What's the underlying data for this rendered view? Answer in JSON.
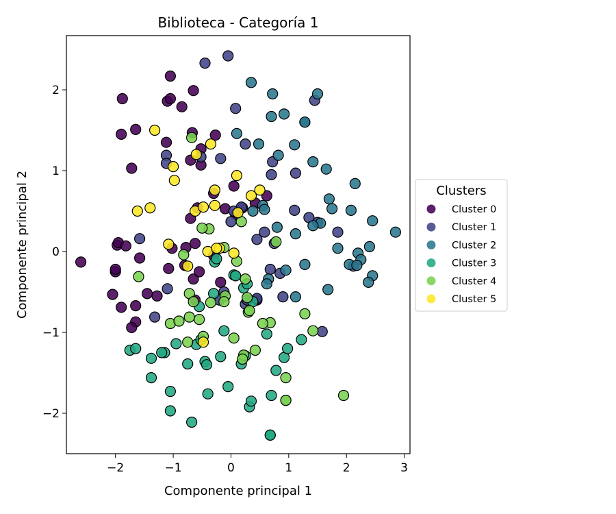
{
  "chart_data": {
    "type": "scatter",
    "title": "Biblioteca - Categoría 1",
    "xlabel": "Componente principal 1",
    "ylabel": "Componente principal 2",
    "xlim": [
      -2.85,
      3.1
    ],
    "ylim": [
      -2.5,
      2.67
    ],
    "xticks": [
      -2,
      -1,
      0,
      1,
      2,
      3
    ],
    "yticks": [
      -2,
      -1,
      0,
      1,
      2
    ],
    "grid": false,
    "legend": {
      "title": "Clusters",
      "placement": "right-center"
    },
    "series": [
      {
        "name": "Cluster 0",
        "color": "#440154",
        "points": [
          [
            -2.6,
            -0.13
          ],
          [
            -2.0,
            -0.25
          ],
          [
            -2.0,
            -0.22
          ],
          [
            -1.97,
            0.08
          ],
          [
            -1.95,
            0.11
          ],
          [
            -2.05,
            -0.53
          ],
          [
            -1.9,
            -0.69
          ],
          [
            -1.82,
            0.07
          ],
          [
            -1.65,
            -0.67
          ],
          [
            -1.65,
            -0.87
          ],
          [
            -1.72,
            -0.94
          ],
          [
            -1.58,
            -0.08
          ],
          [
            -1.45,
            -0.52
          ],
          [
            -1.28,
            -0.55
          ],
          [
            -1.08,
            -0.21
          ],
          [
            -1.02,
            0.04
          ],
          [
            -0.78,
            0.05
          ],
          [
            -0.8,
            -0.17
          ],
          [
            -0.65,
            -0.34
          ],
          [
            -0.62,
            0.1
          ],
          [
            -0.7,
            0.41
          ],
          [
            -0.58,
            0.54
          ],
          [
            -0.55,
            -0.25
          ],
          [
            -0.62,
            -0.6
          ],
          [
            -0.18,
            -0.38
          ],
          [
            -0.3,
            -0.05
          ],
          [
            -0.1,
            0.53
          ],
          [
            0.05,
            0.81
          ],
          [
            0.08,
            0.46
          ],
          [
            0.2,
            0.54
          ],
          [
            0.42,
            0.6
          ],
          [
            0.62,
            0.69
          ],
          [
            -1.88,
            1.89
          ],
          [
            -1.9,
            1.45
          ],
          [
            -1.65,
            1.51
          ],
          [
            -1.72,
            1.03
          ],
          [
            -1.12,
            1.35
          ],
          [
            -1.1,
            1.86
          ],
          [
            -1.05,
            1.89
          ],
          [
            -1.05,
            2.17
          ],
          [
            -0.85,
            1.79
          ],
          [
            -0.65,
            1.99
          ],
          [
            -0.67,
            1.47
          ],
          [
            -0.7,
            1.13
          ],
          [
            -0.52,
            1.07
          ],
          [
            -0.52,
            1.27
          ],
          [
            -0.27,
            1.44
          ],
          [
            -0.3,
            0.72
          ],
          [
            0.45,
            -0.6
          ]
        ]
      },
      {
        "name": "Cluster 1",
        "color": "#414487",
        "points": [
          -0.0,
          0,
          [
            -0.45,
            2.33
          ],
          [
            -0.05,
            2.42
          ],
          [
            0.08,
            1.77
          ],
          [
            0.25,
            1.33
          ],
          [
            -0.18,
            1.15
          ],
          [
            -0.52,
            1.17
          ],
          [
            -1.12,
            1.19
          ],
          [
            -1.12,
            1.09
          ],
          [
            -1.58,
            0.16
          ],
          [
            -1.32,
            -0.81
          ],
          [
            -1.1,
            -0.46
          ],
          [
            0.0,
            0.37
          ],
          [
            0.05,
            0.5
          ],
          [
            0.18,
            0.55
          ],
          [
            0.45,
            0.15
          ],
          [
            0.58,
            0.24
          ],
          [
            0.68,
            -0.22
          ],
          [
            0.9,
            -0.56
          ],
          [
            0.85,
            -0.27
          ],
          [
            0.75,
            0.1
          ],
          [
            0.7,
            0.95
          ],
          [
            0.72,
            1.11
          ],
          [
            1.1,
            0.51
          ],
          [
            1.12,
            0.97
          ],
          [
            1.35,
            0.42
          ],
          [
            1.45,
            1.87
          ],
          [
            1.5,
            0.36
          ],
          [
            1.58,
            -0.99
          ],
          [
            1.85,
            0.24
          ],
          [
            2.12,
            -0.18
          ],
          [
            0.25,
            -0.65
          ],
          [
            0.28,
            -0.6
          ],
          [
            0.45,
            -0.58
          ],
          [
            -0.12,
            -0.5
          ],
          [
            -0.2,
            -0.6
          ]
        ]
      },
      {
        "name": "Cluster 2",
        "color": "#2a788e",
        "points": [
          [
            0.35,
            2.09
          ],
          [
            0.72,
            1.95
          ],
          [
            0.7,
            1.67
          ],
          [
            0.92,
            1.7
          ],
          [
            1.28,
            1.6
          ],
          [
            1.28,
            1.6
          ],
          [
            1.5,
            1.95
          ],
          [
            1.1,
            1.32
          ],
          [
            0.48,
            1.33
          ],
          [
            0.82,
            1.19
          ],
          [
            0.1,
            1.46
          ],
          [
            1.42,
            1.11
          ],
          [
            1.65,
            1.02
          ],
          [
            2.15,
            0.84
          ],
          [
            1.7,
            0.65
          ],
          [
            1.75,
            0.53
          ],
          [
            2.08,
            0.51
          ],
          [
            2.45,
            0.38
          ],
          [
            2.85,
            0.24
          ],
          [
            1.55,
            0.35
          ],
          [
            1.42,
            0.32
          ],
          [
            0.55,
            0.57
          ],
          [
            0.58,
            0.52
          ],
          [
            0.38,
            0.5
          ],
          [
            0.8,
            0.3
          ],
          [
            1.12,
            0.22
          ],
          [
            1.85,
            0.04
          ],
          [
            2.2,
            -0.02
          ],
          [
            2.4,
            0.06
          ],
          [
            2.25,
            -0.1
          ],
          [
            2.05,
            -0.16
          ],
          [
            2.18,
            -0.17
          ],
          [
            2.45,
            -0.3
          ],
          [
            2.38,
            -0.38
          ],
          [
            1.68,
            -0.47
          ],
          [
            1.28,
            -0.16
          ],
          [
            1.12,
            -0.56
          ],
          [
            0.65,
            -0.34
          ],
          [
            0.95,
            -0.23
          ],
          [
            0.62,
            -0.4
          ]
        ]
      },
      {
        "name": "Cluster 3",
        "color": "#22a884",
        "points": [
          [
            -1.75,
            -1.22
          ],
          [
            -1.38,
            -1.32
          ],
          [
            -1.15,
            -1.25
          ],
          [
            -1.38,
            -1.56
          ],
          [
            -1.05,
            -1.73
          ],
          [
            -1.05,
            -1.97
          ],
          [
            -0.95,
            -1.14
          ],
          [
            -0.75,
            -1.39
          ],
          [
            -0.68,
            -2.11
          ],
          [
            -0.6,
            -1.15
          ],
          [
            -0.52,
            -1.09
          ],
          [
            -0.45,
            -1.36
          ],
          [
            -0.42,
            -1.4
          ],
          [
            -0.4,
            -1.76
          ],
          [
            -0.18,
            -1.3
          ],
          [
            -0.12,
            -0.98
          ],
          [
            -0.05,
            -1.67
          ],
          [
            0.18,
            -1.39
          ],
          [
            0.25,
            -1.29
          ],
          [
            0.32,
            -1.92
          ],
          [
            0.35,
            -1.85
          ],
          [
            0.62,
            -1.02
          ],
          [
            0.7,
            -1.78
          ],
          [
            0.78,
            -1.47
          ],
          [
            0.92,
            -1.31
          ],
          [
            0.98,
            -1.2
          ],
          [
            1.22,
            -1.09
          ],
          [
            0.68,
            -2.27
          ],
          [
            0.68,
            -2.27
          ],
          [
            -0.55,
            -0.68
          ],
          [
            -0.3,
            -0.52
          ],
          [
            -0.28,
            -0.13
          ],
          [
            -0.25,
            -0.09
          ],
          [
            0.05,
            -0.29
          ],
          [
            0.08,
            -0.3
          ],
          [
            0.22,
            -0.45
          ],
          [
            0.28,
            -0.4
          ],
          [
            0.38,
            -0.62
          ],
          [
            -1.2,
            -1.25
          ],
          [
            -1.65,
            -1.2
          ]
        ]
      },
      {
        "name": "Cluster 4",
        "color": "#7ad151",
        "points": [
          [
            -0.68,
            1.41
          ],
          [
            -1.6,
            -0.31
          ],
          [
            -1.05,
            -0.89
          ],
          [
            -0.72,
            -0.52
          ],
          [
            -0.82,
            -0.04
          ],
          [
            -0.65,
            -0.62
          ],
          [
            -0.72,
            -0.81
          ],
          [
            -0.55,
            -0.84
          ],
          [
            -0.48,
            -1.05
          ],
          [
            -0.9,
            -0.86
          ],
          [
            -0.75,
            -1.12
          ],
          [
            -0.35,
            -0.63
          ],
          [
            -0.1,
            -0.55
          ],
          [
            -0.12,
            -0.62
          ],
          [
            0.05,
            -1.07
          ],
          [
            0.1,
            -0.12
          ],
          [
            0.18,
            0.37
          ],
          [
            0.25,
            -0.34
          ],
          [
            0.28,
            -0.57
          ],
          [
            0.3,
            -0.75
          ],
          [
            0.32,
            -0.73
          ],
          [
            0.42,
            -1.22
          ],
          [
            0.22,
            -1.28
          ],
          [
            0.2,
            -1.33
          ],
          [
            0.68,
            -0.88
          ],
          [
            0.55,
            -0.89
          ],
          [
            0.78,
            0.12
          ],
          [
            0.95,
            -1.56
          ],
          [
            0.95,
            -1.84
          ],
          [
            0.95,
            -1.84
          ],
          [
            1.28,
            -0.77
          ],
          [
            1.42,
            -0.98
          ],
          [
            1.95,
            -1.78
          ],
          [
            -0.38,
            0.28
          ],
          [
            -0.5,
            0.29
          ],
          [
            -0.12,
            0.05
          ]
        ]
      },
      {
        "name": "Cluster 5",
        "color": "#fde725",
        "points": [
          [
            -1.32,
            1.5
          ],
          [
            -1.0,
            1.05
          ],
          [
            -0.98,
            0.88
          ],
          [
            -1.62,
            0.5
          ],
          [
            -1.4,
            0.54
          ],
          [
            -1.08,
            0.09
          ],
          [
            -0.62,
            0.5
          ],
          [
            -0.6,
            1.2
          ],
          [
            -0.35,
            1.33
          ],
          [
            -0.28,
            0.76
          ],
          [
            -0.28,
            0.57
          ],
          [
            -0.4,
            0.0
          ],
          [
            -0.2,
            0.04
          ],
          [
            -0.25,
            0.04
          ],
          [
            0.1,
            0.94
          ],
          [
            0.5,
            0.76
          ],
          [
            0.35,
            0.69
          ],
          [
            0.05,
            -0.02
          ],
          [
            -0.48,
            -1.12
          ],
          [
            -0.75,
            -0.18
          ],
          [
            0.12,
            0.48
          ],
          [
            -0.48,
            0.55
          ]
        ]
      }
    ]
  }
}
